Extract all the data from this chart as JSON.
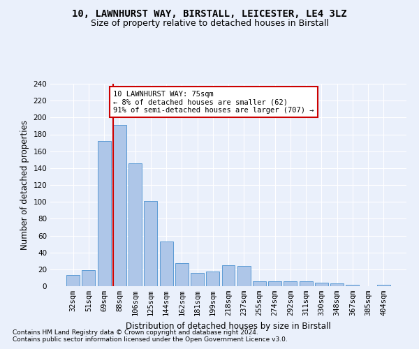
{
  "title1": "10, LAWNHURST WAY, BIRSTALL, LEICESTER, LE4 3LZ",
  "title2": "Size of property relative to detached houses in Birstall",
  "xlabel": "Distribution of detached houses by size in Birstall",
  "ylabel": "Number of detached properties",
  "bar_labels": [
    "32sqm",
    "51sqm",
    "69sqm",
    "88sqm",
    "106sqm",
    "125sqm",
    "144sqm",
    "162sqm",
    "181sqm",
    "199sqm",
    "218sqm",
    "237sqm",
    "255sqm",
    "274sqm",
    "292sqm",
    "311sqm",
    "330sqm",
    "348sqm",
    "367sqm",
    "385sqm",
    "404sqm"
  ],
  "bar_values": [
    13,
    19,
    172,
    191,
    146,
    101,
    53,
    27,
    16,
    17,
    25,
    24,
    6,
    6,
    6,
    6,
    4,
    3,
    2,
    0,
    2
  ],
  "bar_color": "#aec6e8",
  "bar_edge_color": "#5b9bd5",
  "vline_x": 2.575,
  "vline_color": "#cc0000",
  "annotation_text": "10 LAWNHURST WAY: 75sqm\n← 8% of detached houses are smaller (62)\n91% of semi-detached houses are larger (707) →",
  "annotation_box_color": "#ffffff",
  "annotation_box_edge": "#cc0000",
  "ylim": [
    0,
    240
  ],
  "yticks": [
    0,
    20,
    40,
    60,
    80,
    100,
    120,
    140,
    160,
    180,
    200,
    220,
    240
  ],
  "footnote1": "Contains HM Land Registry data © Crown copyright and database right 2024.",
  "footnote2": "Contains public sector information licensed under the Open Government Licence v3.0.",
  "bg_color": "#eaf0fb",
  "plot_bg_color": "#eaf0fb",
  "title1_fontsize": 10,
  "title2_fontsize": 9,
  "xlabel_fontsize": 8.5,
  "ylabel_fontsize": 8.5,
  "tick_fontsize": 7.5,
  "annotation_fontsize": 7.5,
  "footnote_fontsize": 6.5
}
